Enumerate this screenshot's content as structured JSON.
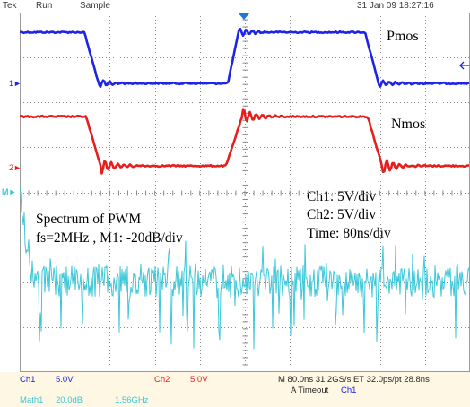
{
  "header": {
    "brand": "Tek",
    "run_state": "Run",
    "acq_mode": "Sample",
    "datetime": "31 Jan 09 18:27:16"
  },
  "traces": {
    "ch1": {
      "label": "Pmos",
      "marker": "1",
      "color": "#1e23e6"
    },
    "ch2": {
      "label": "Nmos",
      "marker": "2",
      "color": "#e61e1e"
    },
    "math1": {
      "marker": "M",
      "color": "#3cc8d8"
    }
  },
  "annotations": {
    "spectrum_line1": "Spectrum of  PWM",
    "spectrum_line2": "fs=2MHz , M1: -20dB/div",
    "ch1_scale": "Ch1: 5V/div",
    "ch2_scale": "Ch2: 5V/div",
    "time_scale": "Time: 80ns/div"
  },
  "footer": {
    "ch1_label": "Ch1",
    "ch1_value": "5.0V",
    "ch2_label": "Ch2",
    "ch2_value": "5.0V",
    "timebase": "M 80.0ns 31.2GS/s ET 32.0ps/pt 28.8ns",
    "trigger_prefix": "A  Timeout",
    "trigger_source": "Ch1",
    "math_label": "Math1",
    "math_value": "20.0dB",
    "math_span": "1.56GHz"
  },
  "colors": {
    "ch1": "#1e23e6",
    "ch2": "#e61e1e",
    "math": "#3cc8d8",
    "footer_bg": "#fdf7e3",
    "grid": "#8a8a8a"
  }
}
